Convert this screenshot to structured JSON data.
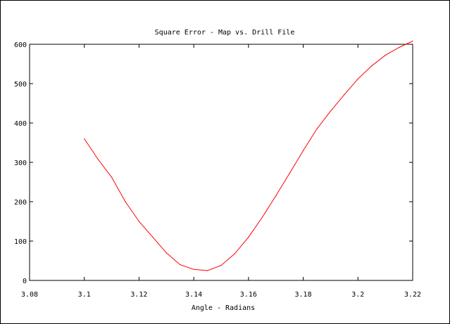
{
  "chart_data": {
    "type": "line",
    "title": "Square Error - Map vs. Drill File",
    "xlabel": "Angle - Radians",
    "ylabel": "",
    "xlim": [
      3.08,
      3.22
    ],
    "ylim": [
      0,
      600
    ],
    "x_ticks": [
      3.08,
      3.1,
      3.12,
      3.14,
      3.16,
      3.18,
      3.2,
      3.22
    ],
    "x_tick_labels": [
      "3.08",
      "3.1",
      "3.12",
      "3.14",
      "3.16",
      "3.18",
      "3.2",
      "3.22"
    ],
    "y_ticks": [
      0,
      100,
      200,
      300,
      400,
      500,
      600
    ],
    "y_tick_labels": [
      "0",
      "100",
      "200",
      "300",
      "400",
      "500",
      "600"
    ],
    "grid": false,
    "legend": "none",
    "series": [
      {
        "color": "#ff0000",
        "x": [
          3.1,
          3.105,
          3.11,
          3.115,
          3.12,
          3.125,
          3.13,
          3.135,
          3.14,
          3.145,
          3.15,
          3.155,
          3.16,
          3.165,
          3.17,
          3.175,
          3.18,
          3.185,
          3.19,
          3.195,
          3.2,
          3.205,
          3.21,
          3.215,
          3.22
        ],
        "y": [
          360,
          308,
          262,
          200,
          150,
          110,
          70,
          40,
          28,
          25,
          38,
          68,
          110,
          160,
          215,
          272,
          330,
          385,
          430,
          472,
          512,
          545,
          572,
          592,
          608
        ]
      }
    ]
  }
}
